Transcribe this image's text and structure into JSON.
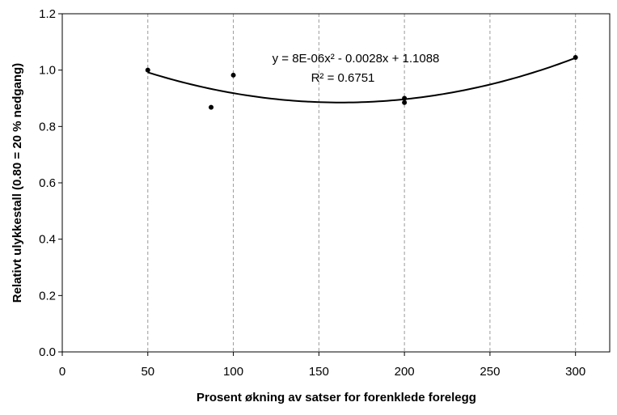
{
  "chart_data": {
    "type": "scatter",
    "xlabel": "Prosent økning av satser for forenklede forelegg",
    "ylabel": "Relativt ulykkestall (0.80 = 20 % nedgang)",
    "xlim": [
      0,
      320
    ],
    "ylim": [
      0.0,
      1.2
    ],
    "x_ticks": [
      0,
      50,
      100,
      150,
      200,
      250,
      300
    ],
    "x_tick_labels": [
      "0",
      "50",
      "100",
      "150",
      "200",
      "250",
      "300"
    ],
    "y_ticks": [
      0.0,
      0.2,
      0.4,
      0.6,
      0.8,
      1.0,
      1.2
    ],
    "y_tick_labels": [
      "0.0",
      "0.2",
      "0.4",
      "0.6",
      "0.8",
      "1.0",
      "1.2"
    ],
    "grid": "vertical dashed",
    "series": [
      {
        "points": [
          {
            "x": 50,
            "y": 1.0
          },
          {
            "x": 87,
            "y": 0.868
          },
          {
            "x": 100,
            "y": 0.982
          },
          {
            "x": 200,
            "y": 0.9
          },
          {
            "x": 200,
            "y": 0.885
          },
          {
            "x": 300,
            "y": 1.045
          }
        ]
      }
    ],
    "trendline": {
      "type": "polynomial",
      "order": 2,
      "x_range": [
        50,
        300
      ]
    },
    "annotations": {
      "equation": "y = 8E-06x² - 0.0028x + 1.1088",
      "r_squared": "R² = 0.6751"
    },
    "colors": {
      "points": "#000000",
      "trendline": "#000000",
      "grid": "#9a9a9a"
    }
  }
}
